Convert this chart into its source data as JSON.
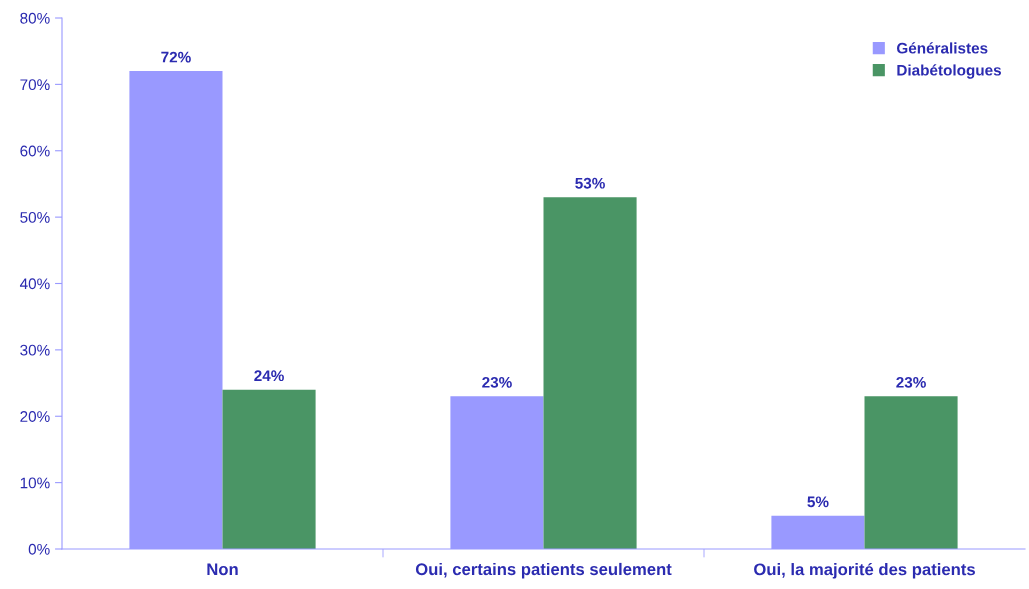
{
  "chart_data": {
    "type": "bar",
    "categories": [
      "Non",
      "Oui, certains patients seulement",
      "Oui, la majorité des patients"
    ],
    "series": [
      {
        "name": "Généralistes",
        "color": "#9999ff",
        "values": [
          72,
          23,
          5
        ]
      },
      {
        "name": "Diabétologues",
        "color": "#4a9565",
        "values": [
          24,
          53,
          23
        ]
      }
    ],
    "ylim": [
      0,
      80
    ],
    "yticks": [
      {
        "value": 0,
        "label": "0%"
      },
      {
        "value": 10,
        "label": "10%"
      },
      {
        "value": 20,
        "label": "20%"
      },
      {
        "value": 30,
        "label": "30%"
      },
      {
        "value": 40,
        "label": "40%"
      },
      {
        "value": 50,
        "label": "50%"
      },
      {
        "value": 60,
        "label": "60%"
      },
      {
        "value": 70,
        "label": "70%"
      },
      {
        "value": 80,
        "label": "80%"
      }
    ],
    "value_labels": [
      [
        "72%",
        "23%",
        "5%"
      ],
      [
        "24%",
        "53%",
        "23%"
      ]
    ],
    "legend": "top right",
    "grid": false
  }
}
